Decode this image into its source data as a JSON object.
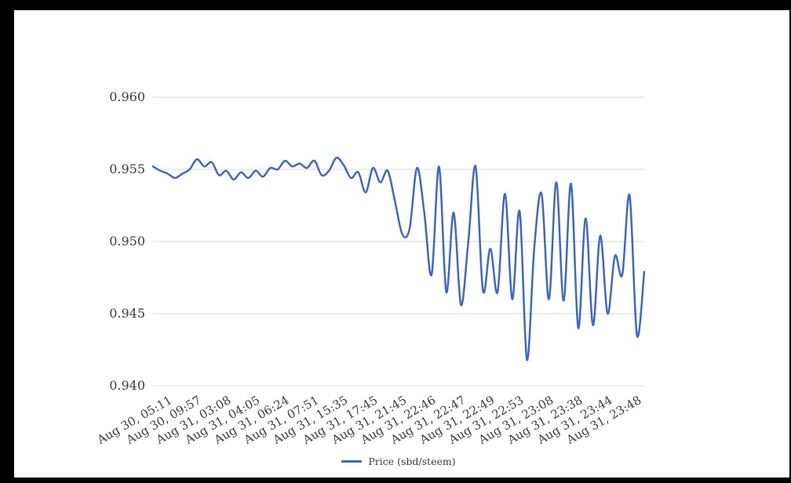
{
  "frame": {
    "background_color": "#000000",
    "panel_color": "#ffffff"
  },
  "chart_data": {
    "type": "line",
    "title": "",
    "xlabel": "",
    "ylabel": "",
    "legend_position": "bottom",
    "grid": true,
    "grid_color": "#d9d9d9",
    "axis_text_color": "#3d3d3d",
    "y_ticks": [
      "0.940",
      "0.945",
      "0.950",
      "0.955",
      "0.960"
    ],
    "y_range": [
      0.94,
      0.96
    ],
    "x_tick_labels": [
      "Aug 30, 05:11",
      "Aug 30, 09:57",
      "Aug 31, 03:08",
      "Aug 31, 04:05",
      "Aug 31, 06:24",
      "Aug 31, 07:51",
      "Aug 31, 15:35",
      "Aug 31, 17:45",
      "Aug 31, 21:45",
      "Aug 31, 22:46",
      "Aug 31, 22:47",
      "Aug 31, 22:49",
      "Aug 31, 22:53",
      "Aug 31, 23:08",
      "Aug 31, 23:38",
      "Aug 31, 23:44",
      "Aug 31, 23:48"
    ],
    "x_tick_first_point_index": 2,
    "x_tick_every_n_points": 4,
    "series": [
      {
        "name": "Price (sbd/steem)",
        "color": "#3c69c7",
        "values": [
          0.9552,
          0.9549,
          0.9547,
          0.9544,
          0.9547,
          0.955,
          0.9557,
          0.9552,
          0.9555,
          0.9546,
          0.9549,
          0.9543,
          0.9548,
          0.9544,
          0.9549,
          0.9545,
          0.9551,
          0.955,
          0.9556,
          0.9552,
          0.9554,
          0.9551,
          0.9556,
          0.9546,
          0.9549,
          0.9558,
          0.9553,
          0.9544,
          0.9548,
          0.9534,
          0.9551,
          0.9541,
          0.9549,
          0.9528,
          0.9505,
          0.9509,
          0.9551,
          0.952,
          0.9477,
          0.9552,
          0.9465,
          0.952,
          0.9456,
          0.95,
          0.9552,
          0.9466,
          0.9495,
          0.9465,
          0.9533,
          0.946,
          0.9521,
          0.9418,
          0.9496,
          0.9533,
          0.946,
          0.9541,
          0.9459,
          0.954,
          0.944,
          0.9516,
          0.9442,
          0.9504,
          0.945,
          0.949,
          0.9477,
          0.9532,
          0.9435,
          0.9479
        ]
      }
    ],
    "legend": {
      "label": "Price (sbd/steem)"
    }
  }
}
